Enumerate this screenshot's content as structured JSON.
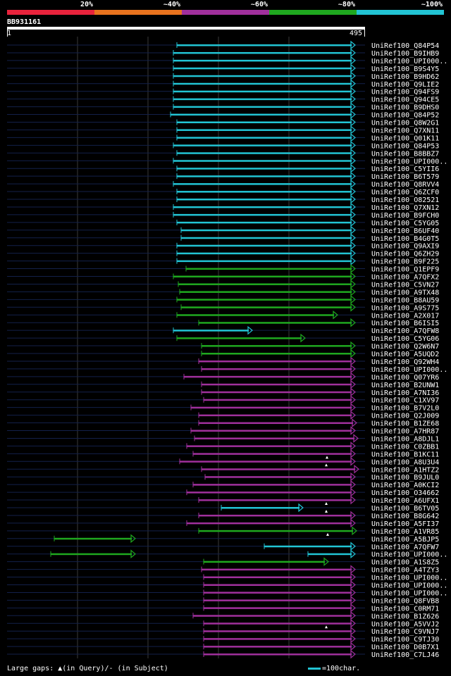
{
  "legend": {
    "items": [
      {
        "label": "20%",
        "color": "#e8233c"
      },
      {
        "label": "~40%",
        "color": "#e8731e"
      },
      {
        "label": "~60%",
        "color": "#a0309c"
      },
      {
        "label": "~80%",
        "color": "#1fa81f"
      },
      {
        "label": "~100%",
        "color": "#22c4d4"
      }
    ]
  },
  "query_id": "BB931161",
  "ruler": {
    "start": "1",
    "end": "495"
  },
  "footer": {
    "gaps_text": "Large gaps: ▲(in Query)/- (in Subject)",
    "scale_text": "=100char."
  },
  "chart_data": {
    "type": "alignment",
    "query_length": 495,
    "x_range": [
      1,
      495
    ],
    "grid": true,
    "hits": [
      {
        "name": "UniRef100_Q84P54",
        "start": 242,
        "end": 495,
        "class": "~100%",
        "arrow": true
      },
      {
        "name": "UniRef100_B9IHB9",
        "start": 237,
        "end": 495,
        "class": "~100%",
        "arrow": true
      },
      {
        "name": "UniRef100_UPI000..",
        "start": 237,
        "end": 495,
        "class": "~100%",
        "arrow": true
      },
      {
        "name": "UniRef100_B9S4Y5",
        "start": 237,
        "end": 495,
        "class": "~100%",
        "arrow": true
      },
      {
        "name": "UniRef100_B9HD62",
        "start": 237,
        "end": 495,
        "class": "~100%",
        "arrow": true
      },
      {
        "name": "UniRef100_Q9LIE2",
        "start": 237,
        "end": 495,
        "class": "~100%",
        "arrow": true
      },
      {
        "name": "UniRef100_Q94FS9",
        "start": 237,
        "end": 495,
        "class": "~100%",
        "arrow": true
      },
      {
        "name": "UniRef100_Q94CE5",
        "start": 237,
        "end": 495,
        "class": "~100%",
        "arrow": true
      },
      {
        "name": "UniRef100_B9DHS0",
        "start": 237,
        "end": 495,
        "class": "~100%",
        "arrow": true
      },
      {
        "name": "UniRef100_Q84P52",
        "start": 233,
        "end": 495,
        "class": "~100%",
        "arrow": true
      },
      {
        "name": "UniRef100_Q8W2G1",
        "start": 242,
        "end": 495,
        "class": "~100%",
        "arrow": true
      },
      {
        "name": "UniRef100_Q7XN11",
        "start": 242,
        "end": 495,
        "class": "~100%",
        "arrow": true
      },
      {
        "name": "UniRef100_Q01K11",
        "start": 242,
        "end": 495,
        "class": "~100%",
        "arrow": true
      },
      {
        "name": "UniRef100_Q84P53",
        "start": 237,
        "end": 495,
        "class": "~100%",
        "arrow": true
      },
      {
        "name": "UniRef100_B8BBZ7",
        "start": 242,
        "end": 495,
        "class": "~100%",
        "arrow": true
      },
      {
        "name": "UniRef100_UPI000..",
        "start": 237,
        "end": 495,
        "class": "~100%",
        "arrow": true
      },
      {
        "name": "UniRef100_C5YII6",
        "start": 242,
        "end": 495,
        "class": "~100%",
        "arrow": true
      },
      {
        "name": "UniRef100_B6T579",
        "start": 242,
        "end": 495,
        "class": "~100%",
        "arrow": true
      },
      {
        "name": "UniRef100_Q8RVV4",
        "start": 237,
        "end": 495,
        "class": "~100%",
        "arrow": true
      },
      {
        "name": "UniRef100_Q6ZCF0",
        "start": 242,
        "end": 495,
        "class": "~100%",
        "arrow": true
      },
      {
        "name": "UniRef100_O82521",
        "start": 242,
        "end": 495,
        "class": "~100%",
        "arrow": true
      },
      {
        "name": "UniRef100_Q7XN12",
        "start": 237,
        "end": 495,
        "class": "~100%",
        "arrow": true
      },
      {
        "name": "UniRef100_B9FCH0",
        "start": 237,
        "end": 495,
        "class": "~100%",
        "arrow": true
      },
      {
        "name": "UniRef100_C5YG05",
        "start": 242,
        "end": 495,
        "class": "~100%",
        "arrow": true
      },
      {
        "name": "UniRef100_B6UF40",
        "start": 248,
        "end": 495,
        "class": "~100%",
        "arrow": true
      },
      {
        "name": "UniRef100_B4G0T5",
        "start": 248,
        "end": 495,
        "class": "~100%",
        "arrow": true
      },
      {
        "name": "UniRef100_Q9AXI9",
        "start": 242,
        "end": 495,
        "class": "~100%",
        "arrow": true
      },
      {
        "name": "UniRef100_Q6ZH29",
        "start": 242,
        "end": 495,
        "class": "~100%",
        "arrow": true
      },
      {
        "name": "UniRef100_B9F225",
        "start": 242,
        "end": 495,
        "class": "~100%",
        "arrow": true
      },
      {
        "name": "UniRef100_Q1EPF9",
        "start": 255,
        "end": 495,
        "class": "~80%",
        "arrow": true
      },
      {
        "name": "UniRef100_A7QFX2",
        "start": 237,
        "end": 495,
        "class": "~80%",
        "arrow": true
      },
      {
        "name": "UniRef100_C5VN27",
        "start": 244,
        "end": 495,
        "class": "~80%",
        "arrow": true
      },
      {
        "name": "UniRef100_A9TX48",
        "start": 246,
        "end": 495,
        "class": "~80%",
        "arrow": true
      },
      {
        "name": "UniRef100_B8AU59",
        "start": 242,
        "end": 495,
        "class": "~80%",
        "arrow": true
      },
      {
        "name": "UniRef100_A9S775",
        "start": 248,
        "end": 495,
        "class": "~80%",
        "arrow": true
      },
      {
        "name": "UniRef100_A2X017",
        "start": 242,
        "end": 470,
        "class": "~80%",
        "arrow": true
      },
      {
        "name": "UniRef100_B6ISI5",
        "start": 273,
        "end": 495,
        "class": "~80%",
        "arrow": true
      },
      {
        "name": "UniRef100_A7QFW8",
        "start": 237,
        "end": 349,
        "class": "~100%",
        "arrow": true
      },
      {
        "name": "UniRef100_C5YG06",
        "start": 242,
        "end": 424,
        "class": "~80%",
        "arrow": true
      },
      {
        "name": "UniRef100_Q2W6N7",
        "start": 277,
        "end": 495,
        "class": "~80%",
        "arrow": true
      },
      {
        "name": "UniRef100_A5UQD2",
        "start": 277,
        "end": 495,
        "class": "~80%",
        "arrow": true
      },
      {
        "name": "UniRef100_Q92WH4",
        "start": 273,
        "end": 495,
        "class": "~60%",
        "arrow": true
      },
      {
        "name": "UniRef100_UPI000..",
        "start": 277,
        "end": 495,
        "class": "~60%",
        "arrow": true
      },
      {
        "name": "UniRef100_Q07YR6",
        "start": 252,
        "end": 495,
        "class": "~60%",
        "arrow": true
      },
      {
        "name": "UniRef100_B2UNW1",
        "start": 277,
        "end": 495,
        "class": "~60%",
        "arrow": true
      },
      {
        "name": "UniRef100_A7NI36",
        "start": 277,
        "end": 495,
        "class": "~60%",
        "arrow": true
      },
      {
        "name": "UniRef100_C1XV97",
        "start": 280,
        "end": 495,
        "class": "~60%",
        "arrow": true
      },
      {
        "name": "UniRef100_B7V2L0",
        "start": 262,
        "end": 495,
        "class": "~60%",
        "arrow": true
      },
      {
        "name": "UniRef100_Q2J009",
        "start": 273,
        "end": 495,
        "class": "~60%",
        "arrow": true
      },
      {
        "name": "UniRef100_B1ZE68",
        "start": 273,
        "end": 497,
        "class": "~60%",
        "arrow": true
      },
      {
        "name": "UniRef100_A7HR87",
        "start": 262,
        "end": 495,
        "class": "~60%",
        "arrow": true
      },
      {
        "name": "UniRef100_A8DJL1",
        "start": 267,
        "end": 499,
        "class": "~60%",
        "arrow": true
      },
      {
        "name": "UniRef100_C0ZBB1",
        "start": 256,
        "end": 495,
        "class": "~60%",
        "arrow": true
      },
      {
        "name": "UniRef100_B1KC11",
        "start": 265,
        "end": 495,
        "class": "~60%",
        "arrow": true
      },
      {
        "name": "UniRef100_A8U3U4",
        "start": 246,
        "end": 495,
        "class": "~60%",
        "arrow": true
      },
      {
        "name": "UniRef100_A1HTZ2",
        "start": 277,
        "end": 500,
        "class": "~60%",
        "arrow": true
      },
      {
        "name": "UniRef100_B9JUL0",
        "start": 282,
        "end": 495,
        "class": "~60%",
        "arrow": true
      },
      {
        "name": "UniRef100_A0KCI2",
        "start": 265,
        "end": 495,
        "class": "~60%",
        "arrow": true
      },
      {
        "name": "UniRef100_O34662",
        "start": 256,
        "end": 495,
        "class": "~60%",
        "arrow": true
      },
      {
        "name": "UniRef100_A6UFX1",
        "start": 273,
        "end": 495,
        "class": "~60%",
        "arrow": true
      },
      {
        "name": "UniRef100_B6TV05",
        "start": 305,
        "end": 421,
        "class": "~100%",
        "arrow": true
      },
      {
        "name": "UniRef100_B8G642",
        "start": 273,
        "end": 495,
        "class": "~60%",
        "arrow": true
      },
      {
        "name": "UniRef100_A5FI37",
        "start": 256,
        "end": 495,
        "class": "~60%",
        "arrow": true
      },
      {
        "name": "UniRef100_A1VR85",
        "start": 273,
        "end": 497,
        "class": "~80%",
        "arrow": true
      },
      {
        "name": "UniRef100_A5BJP5",
        "start": 68,
        "end": 183,
        "class": "~80%",
        "arrow": true
      },
      {
        "name": "UniRef100_A7QFW7",
        "start": 366,
        "end": 495,
        "class": "~100%",
        "arrow": true
      },
      {
        "name": "UniRef100_UPI000..",
        "start": 63,
        "end": 183,
        "class": "~80%",
        "arrow": true
      },
      {
        "name": "UniRef100_A1S8Z5",
        "start": 280,
        "end": 457,
        "class": "~80%",
        "arrow": true
      },
      {
        "name": "UniRef100_A4TZY3",
        "start": 277,
        "end": 495,
        "class": "~60%",
        "arrow": true
      },
      {
        "name": "UniRef100_UPI000..",
        "start": 280,
        "end": 495,
        "class": "~60%",
        "arrow": true
      },
      {
        "name": "UniRef100_UPI000..",
        "start": 280,
        "end": 495,
        "class": "~60%",
        "arrow": true
      },
      {
        "name": "UniRef100_UPI000..",
        "start": 280,
        "end": 495,
        "class": "~60%",
        "arrow": true
      },
      {
        "name": "UniRef100_Q8FVB8",
        "start": 280,
        "end": 495,
        "class": "~60%",
        "arrow": true
      },
      {
        "name": "UniRef100_C0RM71",
        "start": 280,
        "end": 495,
        "class": "~60%",
        "arrow": true
      },
      {
        "name": "UniRef100_B1Z626",
        "start": 265,
        "end": 495,
        "class": "~60%",
        "arrow": true
      },
      {
        "name": "UniRef100_A5VVJ2",
        "start": 280,
        "end": 495,
        "class": "~60%",
        "arrow": true
      },
      {
        "name": "UniRef100_C9VNJ7",
        "start": 280,
        "end": 495,
        "class": "~60%",
        "arrow": true
      },
      {
        "name": "UniRef100_C9TJ30",
        "start": 280,
        "end": 495,
        "class": "~60%",
        "arrow": true
      },
      {
        "name": "UniRef100_D0B7X1",
        "start": 280,
        "end": 495,
        "class": "~60%",
        "arrow": true
      },
      {
        "name": "UniRef100_C7LJ46",
        "start": 280,
        "end": 495,
        "class": "~60%",
        "arrow": true
      }
    ],
    "extra_segments": [
      {
        "hit_index": 66,
        "start": 428,
        "end": 495,
        "class": "~100%"
      }
    ],
    "query_gaps": [
      {
        "hit_index": 53,
        "position": 455
      },
      {
        "hit_index": 54,
        "position": 454
      },
      {
        "hit_index": 59,
        "position": 454
      },
      {
        "hit_index": 60,
        "position": 454
      },
      {
        "hit_index": 63,
        "position": 456
      },
      {
        "hit_index": 75,
        "position": 454
      }
    ]
  }
}
